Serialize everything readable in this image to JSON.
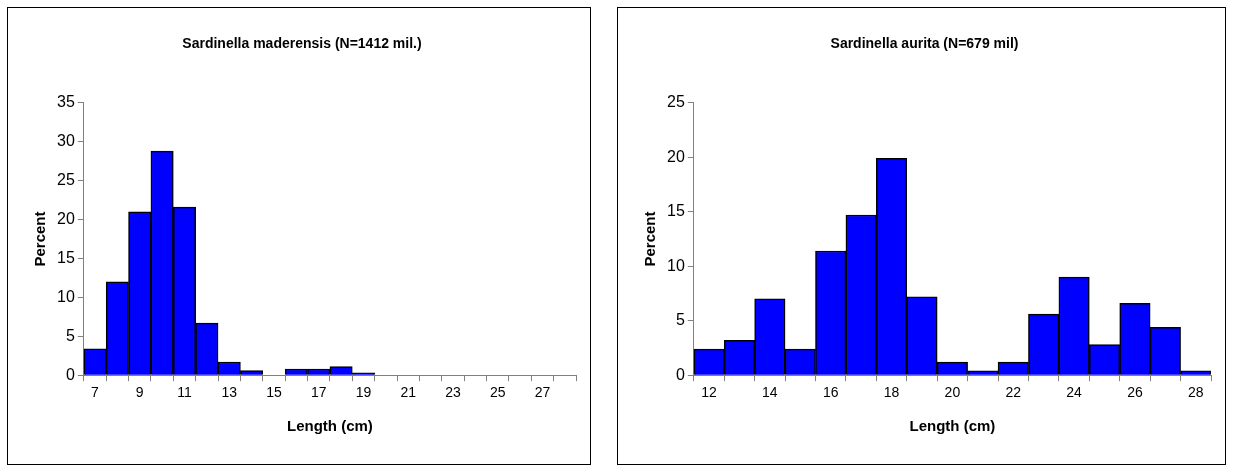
{
  "chart_data": [
    {
      "type": "bar",
      "title": "Sardinella maderensis (N=1412 mil.)",
      "xlabel": "Length (cm)",
      "ylabel": "Percent",
      "categories": [
        "7",
        null,
        "9",
        null,
        "11",
        null,
        "13",
        null,
        "15",
        null,
        "17",
        null,
        "19",
        null,
        "21",
        null,
        "23",
        null,
        "25",
        null,
        "27",
        null
      ],
      "values": [
        3.4,
        12.0,
        21.0,
        28.8,
        21.6,
        6.7,
        1.7,
        0.6,
        0,
        0.8,
        0.8,
        1.1,
        0.3,
        0,
        0,
        0,
        0,
        0,
        0,
        0,
        0,
        0
      ],
      "color": "#0000ff",
      "ylim": [
        0,
        35
      ],
      "yticks": [
        0,
        5,
        10,
        15,
        20,
        25,
        30,
        35
      ],
      "grid": false,
      "legend": false
    },
    {
      "type": "bar",
      "title": "Sardinella aurita (N=679 mil)",
      "xlabel": "Length (cm)",
      "ylabel": "Percent",
      "categories": [
        "12",
        null,
        "14",
        null,
        "16",
        null,
        "18",
        null,
        "20",
        null,
        "22",
        null,
        "24",
        null,
        "26",
        null,
        "28"
      ],
      "values": [
        2.4,
        3.2,
        7.0,
        2.4,
        11.4,
        14.7,
        19.9,
        7.2,
        1.2,
        0.4,
        1.2,
        5.6,
        9.0,
        2.8,
        6.6,
        4.4,
        0.4
      ],
      "color": "#0000ff",
      "ylim": [
        0,
        25
      ],
      "yticks": [
        0,
        5,
        10,
        15,
        20,
        25
      ],
      "grid": false,
      "legend": false
    }
  ]
}
